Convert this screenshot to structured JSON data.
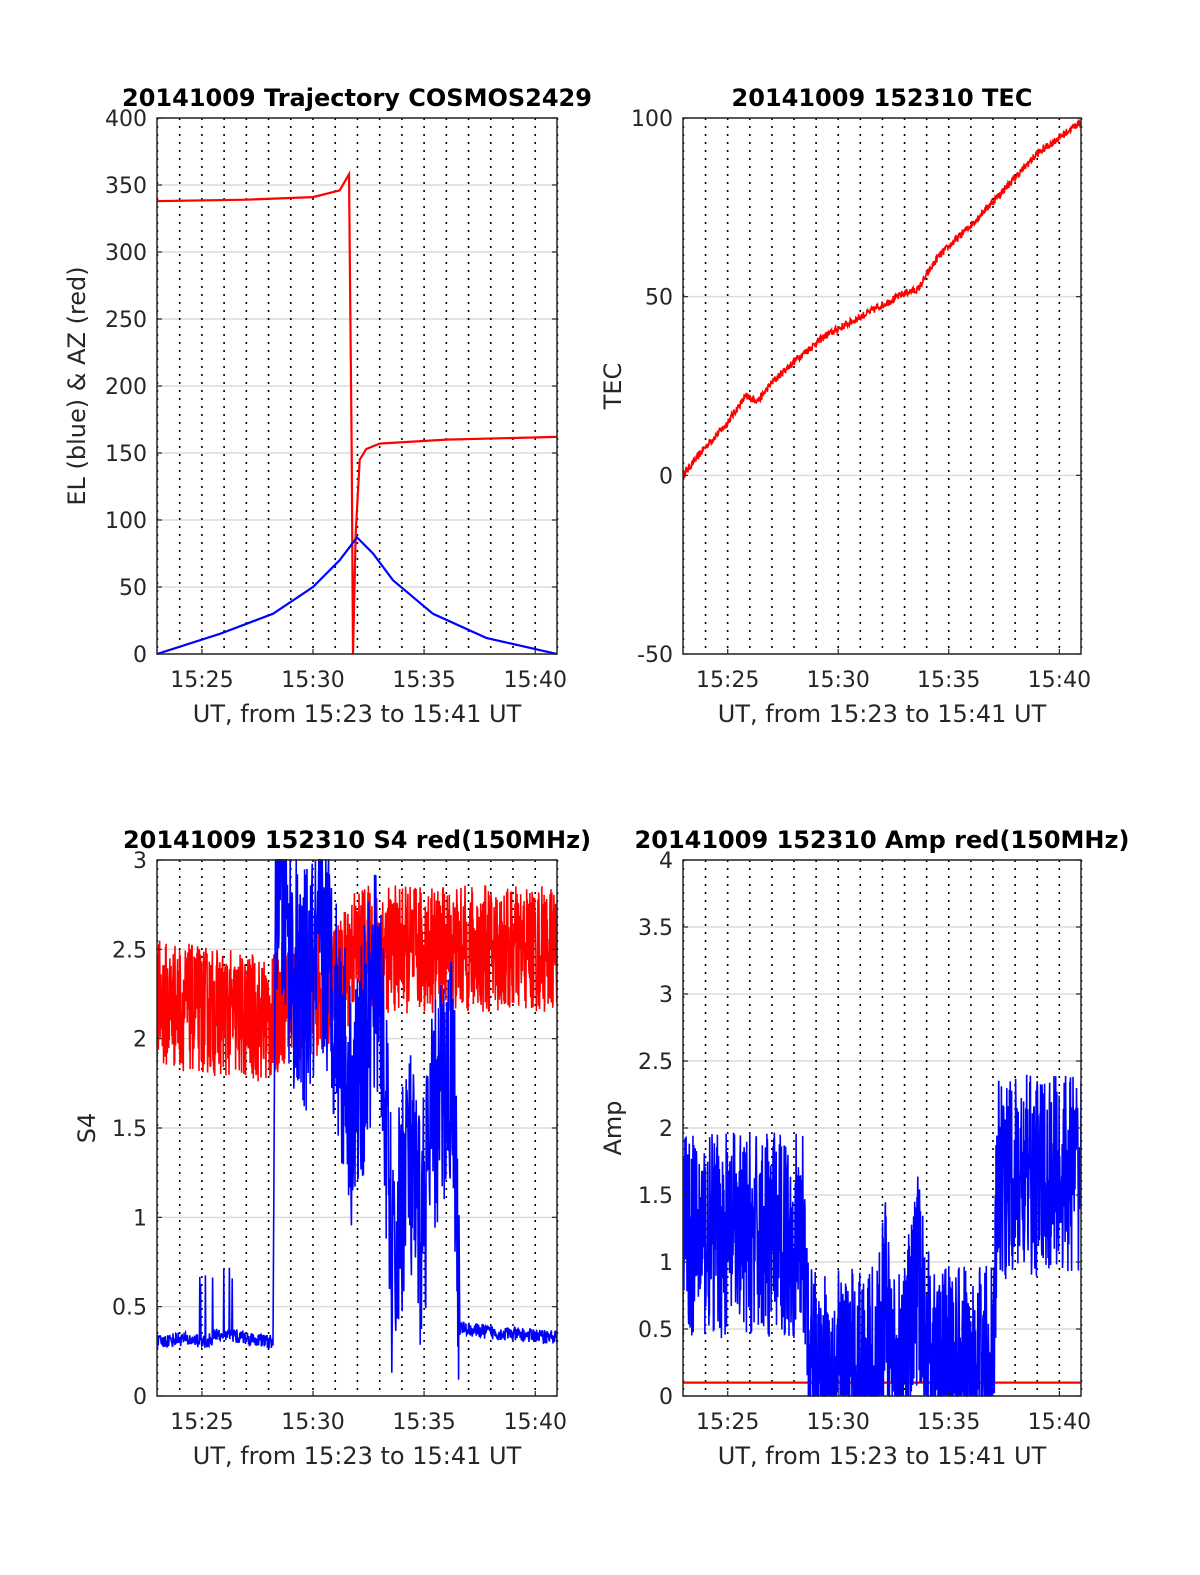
{
  "chart_data": [
    {
      "id": "p1",
      "type": "line",
      "title": "20141009 Trajectory COSMOS2429",
      "xlabel": "UT, from 15:23 to 15:41 UT",
      "ylabel": "EL (blue) & AZ (red)",
      "xlim": [
        15.383,
        15.683
      ],
      "ylim": [
        0,
        400
      ],
      "yticks": [
        0,
        50,
        100,
        150,
        200,
        250,
        300,
        350,
        400
      ],
      "ytick_labels": [
        "0",
        "50",
        "100",
        "150",
        "200",
        "250",
        "300",
        "350",
        "400"
      ],
      "xticks": [
        15.4167,
        15.5,
        15.5833,
        15.6667
      ],
      "xtick_labels": [
        "15:25",
        "15:30",
        "15:35",
        "15:40"
      ],
      "grid": true,
      "series": [
        {
          "color": "#ff0000",
          "x": [
            15.383,
            15.45,
            15.5,
            15.52,
            15.527,
            15.529,
            15.53,
            15.532,
            15.535,
            15.54,
            15.55,
            15.6,
            15.683
          ],
          "y": [
            338,
            339,
            341,
            346,
            358,
            150,
            0,
            90,
            145,
            153,
            157,
            160,
            162
          ]
        },
        {
          "color": "#0000ff",
          "x": [
            15.383,
            15.43,
            15.47,
            15.5,
            15.52,
            15.533,
            15.545,
            15.56,
            15.59,
            15.63,
            15.683
          ],
          "y": [
            0,
            15,
            30,
            50,
            70,
            87,
            75,
            55,
            30,
            12,
            0
          ]
        }
      ]
    },
    {
      "id": "p2",
      "type": "line",
      "title": "20141009 152310 TEC",
      "xlabel": "UT, from 15:23 to 15:41 UT",
      "ylabel": "TEC",
      "xlim": [
        15.383,
        15.683
      ],
      "ylim": [
        -50,
        100
      ],
      "yticks": [
        -50,
        0,
        50,
        100
      ],
      "ytick_labels": [
        "-50",
        "0",
        "50",
        "100"
      ],
      "xticks": [
        15.4167,
        15.5,
        15.5833,
        15.6667
      ],
      "xtick_labels": [
        "15:25",
        "15:30",
        "15:35",
        "15:40"
      ],
      "grid": true,
      "series": [
        {
          "color": "#ff0000",
          "x": [
            15.383,
            15.4,
            15.415,
            15.43,
            15.44,
            15.45,
            15.47,
            15.49,
            15.51,
            15.53,
            15.55,
            15.56,
            15.575,
            15.6,
            15.62,
            15.65,
            15.683
          ],
          "y": [
            0,
            8,
            14,
            22,
            21,
            26,
            33,
            39,
            43,
            47,
            51,
            52,
            61,
            70,
            78,
            90,
            99
          ]
        }
      ]
    },
    {
      "id": "p3",
      "type": "line",
      "title": "20141009 152310 S4 red(150MHz)",
      "xlabel": "UT, from 15:23 to 15:41 UT",
      "ylabel": "S4",
      "xlim": [
        15.383,
        15.683
      ],
      "ylim": [
        0,
        3
      ],
      "yticks": [
        0,
        0.5,
        1,
        1.5,
        2,
        2.5,
        3
      ],
      "ytick_labels": [
        "0",
        "0.5",
        "1",
        "1.5",
        "2",
        "2.5",
        "3"
      ],
      "xticks": [
        15.4167,
        15.5,
        15.5833,
        15.6667
      ],
      "xtick_labels": [
        "15:25",
        "15:30",
        "15:35",
        "15:40"
      ],
      "grid": true,
      "series": [
        {
          "color": "#ff0000",
          "noise": true,
          "x": [
            15.383,
            15.47,
            15.475,
            15.52,
            15.53,
            15.6,
            15.683
          ],
          "y": [
            2.2,
            2.1,
            2.2,
            2.3,
            2.5,
            2.5,
            2.5
          ]
        },
        {
          "color": "#0000ff",
          "x": [
            15.383,
            15.4,
            15.42,
            15.43,
            15.47,
            15.472,
            15.49,
            15.51,
            15.53,
            15.55,
            15.56,
            15.57,
            15.58,
            15.59,
            15.605,
            15.61,
            15.64,
            15.683
          ],
          "y": [
            0.3,
            0.32,
            0.3,
            0.35,
            0.3,
            3.0,
            2.2,
            2.5,
            1.6,
            2.4,
            0.6,
            1.4,
            0.9,
            1.5,
            1.9,
            0.38,
            0.35,
            0.33
          ]
        }
      ]
    },
    {
      "id": "p4",
      "type": "line",
      "title": "20141009 152310 Amp red(150MHz)",
      "xlabel": "UT, from 15:23 to 15:41 UT",
      "ylabel": "Amp",
      "xlim": [
        15.383,
        15.683
      ],
      "ylim": [
        0,
        4
      ],
      "yticks": [
        0,
        0.5,
        1,
        1.5,
        2,
        2.5,
        3,
        3.5,
        4
      ],
      "ytick_labels": [
        "0",
        "0.5",
        "1",
        "1.5",
        "2",
        "2.5",
        "3",
        "3.5",
        "4"
      ],
      "xticks": [
        15.4167,
        15.5,
        15.5833,
        15.6667
      ],
      "xtick_labels": [
        "15:25",
        "15:30",
        "15:35",
        "15:40"
      ],
      "grid": true,
      "series": [
        {
          "color": "#ff0000",
          "x": [
            15.383,
            15.683
          ],
          "y": [
            0.1,
            0.1
          ]
        },
        {
          "color": "#0000ff",
          "noise": true,
          "x": [
            15.383,
            15.475,
            15.478,
            15.53,
            15.535,
            15.54,
            15.55,
            15.56,
            15.57,
            15.6,
            15.617,
            15.62,
            15.683
          ],
          "y": [
            1.2,
            1.2,
            0.18,
            0.2,
            0.8,
            0.2,
            0.25,
            0.9,
            0.25,
            0.22,
            0.25,
            1.6,
            1.7
          ]
        }
      ]
    }
  ]
}
